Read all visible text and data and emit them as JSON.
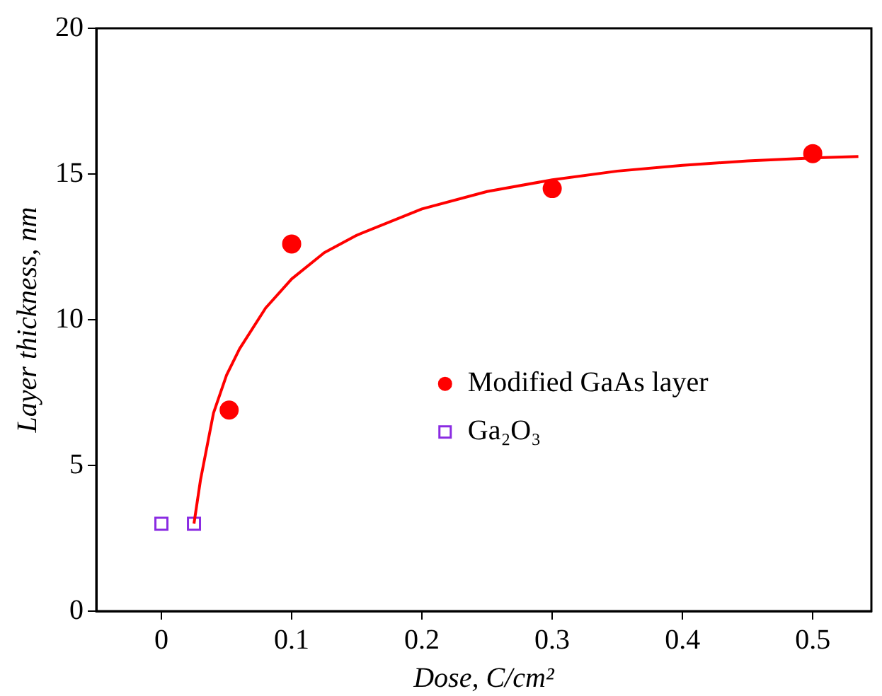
{
  "chart_data": {
    "type": "scatter",
    "xlabel": "Dose, C/cm²",
    "ylabel": "Layer thickness, nm",
    "xlim": [
      -0.05,
      0.545
    ],
    "xticks": [
      0,
      0.1,
      0.2,
      0.3,
      0.4,
      0.5
    ],
    "ylim": [
      0,
      20
    ],
    "yticks": [
      0,
      5,
      10,
      15,
      20
    ],
    "grid": false,
    "legend": "center right",
    "series": [
      {
        "type": "line",
        "color": "#ff0000",
        "marker": "none",
        "x": [
          0.025,
          0.03,
          0.04,
          0.05,
          0.06,
          0.08,
          0.1,
          0.125,
          0.15,
          0.2,
          0.25,
          0.3,
          0.35,
          0.4,
          0.45,
          0.5,
          0.535
        ],
        "values": [
          3,
          4.5,
          6.8,
          8.1,
          9.0,
          10.4,
          11.4,
          12.3,
          12.9,
          13.8,
          14.4,
          14.8,
          15.1,
          15.3,
          15.45,
          15.55,
          15.6
        ]
      },
      {
        "type": "scatter",
        "name": "Modified GaAs layer",
        "color": "#ff0000",
        "marker": "circle",
        "x": [
          0.052,
          0.1,
          0.3,
          0.5
        ],
        "values": [
          6.9,
          12.6,
          14.5,
          15.7
        ]
      },
      {
        "type": "scatter",
        "name": "Ga₂O₃",
        "color": "#8a2be2",
        "marker": "square",
        "x": [
          0,
          0.025
        ],
        "values": [
          3,
          3
        ]
      }
    ]
  }
}
